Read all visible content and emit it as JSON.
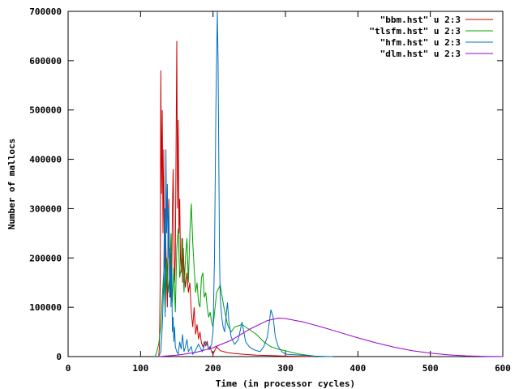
{
  "chart_data": {
    "type": "line",
    "xlabel": "Time (in processor cycles)",
    "ylabel": "Number of mallocs",
    "xlim": [
      0,
      600
    ],
    "ylim": [
      0,
      700000
    ],
    "xticks": [
      0,
      100,
      200,
      300,
      400,
      500,
      600
    ],
    "yticks": [
      0,
      100000,
      200000,
      300000,
      400000,
      500000,
      600000,
      700000
    ],
    "xtick_labels": [
      "0",
      "100",
      "200",
      "300",
      "400",
      "500",
      "600"
    ],
    "ytick_labels": [
      "0",
      "100000",
      "200000",
      "300000",
      "400000",
      "500000",
      "600000",
      "700000"
    ],
    "grid": false,
    "legend_position": "top-right",
    "series": [
      {
        "name": "\"bbm.hst\" u 2:3",
        "color": "#cc0000",
        "x": [
          125,
          126,
          127,
          128,
          129,
          130,
          131,
          132,
          133,
          134,
          135,
          136,
          137,
          138,
          139,
          140,
          141,
          142,
          143,
          144,
          145,
          146,
          147,
          148,
          149,
          150,
          151,
          152,
          153,
          154,
          155,
          156,
          157,
          158,
          159,
          160,
          162,
          164,
          166,
          168,
          170,
          172,
          174,
          176,
          178,
          180,
          182,
          184,
          186,
          188,
          190,
          192,
          194,
          196,
          198,
          200,
          205,
          210,
          220,
          230,
          240,
          250,
          260,
          280,
          300,
          320,
          340
        ],
        "y": [
          0,
          20000,
          150000,
          580000,
          330000,
          500000,
          250000,
          420000,
          180000,
          300000,
          220000,
          150000,
          100000,
          260000,
          320000,
          180000,
          120000,
          210000,
          140000,
          300000,
          380000,
          250000,
          150000,
          200000,
          420000,
          640000,
          300000,
          480000,
          250000,
          320000,
          200000,
          170000,
          240000,
          150000,
          220000,
          180000,
          140000,
          170000,
          130000,
          150000,
          90000,
          60000,
          100000,
          45000,
          65000,
          35000,
          50000,
          28000,
          20000,
          30000,
          22000,
          30000,
          15000,
          20000,
          10000,
          5000,
          20000,
          12000,
          8000,
          6000,
          5000,
          4000,
          3000,
          2000,
          1000,
          500,
          0
        ]
      },
      {
        "name": "\"tlsfm.hst\" u 2:3",
        "color": "#00a000",
        "x": [
          120,
          122,
          125,
          128,
          130,
          132,
          134,
          136,
          138,
          140,
          142,
          144,
          146,
          148,
          150,
          152,
          154,
          156,
          158,
          160,
          162,
          164,
          166,
          168,
          170,
          172,
          174,
          176,
          178,
          180,
          182,
          184,
          186,
          188,
          190,
          192,
          194,
          196,
          198,
          200,
          205,
          210,
          215,
          220,
          225,
          230,
          240,
          250,
          260,
          270,
          280,
          290,
          300,
          310,
          320,
          330,
          340,
          350,
          360
        ],
        "y": [
          0,
          8000,
          25000,
          60000,
          120000,
          170000,
          90000,
          200000,
          130000,
          160000,
          250000,
          110000,
          180000,
          90000,
          220000,
          260000,
          160000,
          180000,
          240000,
          130000,
          200000,
          240000,
          150000,
          250000,
          310000,
          230000,
          180000,
          130000,
          150000,
          110000,
          100000,
          160000,
          170000,
          120000,
          130000,
          100000,
          80000,
          90000,
          70000,
          60000,
          130000,
          145000,
          100000,
          65000,
          50000,
          60000,
          65000,
          55000,
          45000,
          30000,
          20000,
          15000,
          12000,
          8000,
          5000,
          3000,
          1000,
          500,
          0
        ]
      },
      {
        "name": "\"hfm.hst\" u 2:3",
        "color": "#0070c0",
        "x": [
          125,
          128,
          130,
          132,
          133,
          134,
          135,
          136,
          137,
          138,
          139,
          140,
          141,
          142,
          143,
          144,
          145,
          146,
          147,
          148,
          150,
          152,
          154,
          156,
          158,
          160,
          162,
          164,
          166,
          168,
          170,
          172,
          175,
          180,
          185,
          190,
          195,
          198,
          200,
          202,
          204,
          205,
          206,
          207,
          208,
          209,
          210,
          212,
          214,
          216,
          218,
          220,
          222,
          225,
          228,
          230,
          235,
          240,
          245,
          250,
          255,
          260,
          265,
          270,
          275,
          280,
          283,
          286,
          290,
          295,
          300,
          310,
          320,
          330,
          340,
          350,
          360,
          365
        ],
        "y": [
          0,
          10000,
          60000,
          150000,
          300000,
          80000,
          420000,
          250000,
          350000,
          200000,
          300000,
          120000,
          220000,
          100000,
          180000,
          50000,
          80000,
          30000,
          60000,
          20000,
          10000,
          5000,
          30000,
          15000,
          45000,
          10000,
          20000,
          35000,
          10000,
          15000,
          20000,
          5000,
          10000,
          25000,
          10000,
          30000,
          15000,
          25000,
          50000,
          200000,
          500000,
          600000,
          700000,
          600000,
          400000,
          200000,
          120000,
          80000,
          60000,
          50000,
          80000,
          110000,
          70000,
          40000,
          30000,
          25000,
          35000,
          70000,
          30000,
          20000,
          15000,
          12000,
          10000,
          20000,
          40000,
          95000,
          80000,
          40000,
          20000,
          10000,
          5000,
          4000,
          3000,
          2000,
          1000,
          500,
          200,
          0
        ]
      },
      {
        "name": "\"dlm.hst\" u 2:3",
        "color": "#9900cc",
        "x": [
          125,
          150,
          175,
          200,
          225,
          250,
          275,
          290,
          300,
          325,
          350,
          375,
          400,
          425,
          450,
          475,
          500,
          525,
          550,
          575,
          600
        ],
        "y": [
          0,
          3000,
          8000,
          18000,
          33000,
          55000,
          73000,
          78000,
          77000,
          70000,
          60000,
          49000,
          38000,
          28000,
          19000,
          12000,
          7000,
          3500,
          1500,
          500,
          0
        ]
      }
    ]
  }
}
